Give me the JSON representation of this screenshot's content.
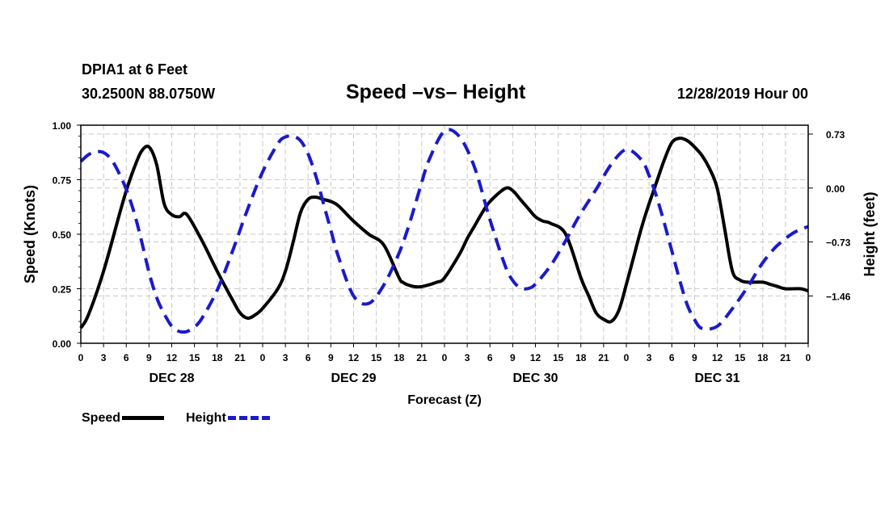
{
  "header": {
    "station": "DPIA1 at 6 Feet",
    "coords": "30.2500N 88.0750W",
    "title": "Speed –vs– Height",
    "date": "12/28/2019 Hour 00"
  },
  "legend": {
    "speed": "Speed",
    "height": "Height"
  },
  "chart_data": {
    "type": "line",
    "title": "Speed –vs– Height",
    "xlabel": "Forecast (Z)",
    "ylabel_left": "Speed (Knots)",
    "ylabel_right": "Height (feet)",
    "xlim": [
      0,
      96
    ],
    "ylim_left": [
      0,
      1
    ],
    "ylim_right": [
      -2.1,
      0.85
    ],
    "left_ticks": [
      {
        "v": 0,
        "label": "0.00"
      },
      {
        "v": 0.25,
        "label": "0.25"
      },
      {
        "v": 0.5,
        "label": "0.50"
      },
      {
        "v": 0.75,
        "label": "0.75"
      },
      {
        "v": 1,
        "label": "1.00"
      }
    ],
    "right_ticks": [
      {
        "v": 0.73,
        "label": "0.73"
      },
      {
        "v": 0,
        "label": "0.00"
      },
      {
        "v": -0.73,
        "label": "−0.73"
      },
      {
        "v": -1.46,
        "label": "−1.46"
      }
    ],
    "x_tick_labels": [
      "0",
      "3",
      "6",
      "9",
      "12",
      "15",
      "18",
      "21",
      "0",
      "3",
      "6",
      "9",
      "12",
      "15",
      "18",
      "21",
      "0",
      "3",
      "6",
      "9",
      "12",
      "15",
      "18",
      "21",
      "0",
      "3",
      "6",
      "9",
      "12",
      "15",
      "18",
      "21",
      "0"
    ],
    "day_labels": [
      {
        "x": 12,
        "label": "DEC 28"
      },
      {
        "x": 36,
        "label": "DEC 29"
      },
      {
        "x": 60,
        "label": "DEC 30"
      },
      {
        "x": 84,
        "label": "DEC 31"
      }
    ],
    "grid": true,
    "series": [
      {
        "name": "Speed",
        "axis": "left",
        "color": "#000000",
        "style": "solid",
        "x": [
          0,
          1,
          3,
          5,
          6,
          7,
          8,
          9,
          10,
          11,
          12,
          13,
          14,
          16,
          18,
          20,
          21,
          22,
          23,
          24,
          26,
          27,
          28,
          29,
          30,
          31,
          32,
          33,
          34,
          36,
          38,
          40,
          42,
          42.5,
          43,
          44,
          45,
          47,
          48,
          50,
          51,
          52,
          53,
          54,
          56,
          57,
          58,
          59,
          60,
          61,
          62,
          64,
          66,
          67,
          68,
          69,
          70,
          71,
          72,
          73,
          74,
          75,
          76,
          77,
          78,
          79,
          80,
          81,
          82,
          83,
          84,
          85,
          86,
          87,
          88,
          90,
          91,
          92,
          93,
          95,
          96
        ],
        "y": [
          0.07,
          0.13,
          0.33,
          0.58,
          0.7,
          0.8,
          0.88,
          0.9,
          0.82,
          0.64,
          0.59,
          0.58,
          0.59,
          0.47,
          0.33,
          0.2,
          0.14,
          0.115,
          0.13,
          0.16,
          0.25,
          0.33,
          0.46,
          0.6,
          0.66,
          0.67,
          0.66,
          0.65,
          0.63,
          0.56,
          0.5,
          0.45,
          0.3,
          0.28,
          0.27,
          0.26,
          0.26,
          0.28,
          0.3,
          0.41,
          0.48,
          0.54,
          0.6,
          0.65,
          0.71,
          0.7,
          0.66,
          0.62,
          0.58,
          0.56,
          0.55,
          0.5,
          0.3,
          0.22,
          0.14,
          0.11,
          0.1,
          0.15,
          0.27,
          0.4,
          0.53,
          0.64,
          0.74,
          0.84,
          0.92,
          0.94,
          0.93,
          0.9,
          0.86,
          0.8,
          0.71,
          0.52,
          0.33,
          0.29,
          0.28,
          0.28,
          0.27,
          0.26,
          0.25,
          0.25,
          0.24
        ]
      },
      {
        "name": "Height",
        "axis": "right",
        "color": "#1a1acc",
        "style": "dashed",
        "x": [
          0,
          1,
          2,
          3,
          4,
          5,
          6,
          7,
          8,
          9,
          10,
          11,
          12,
          13,
          14,
          15,
          16,
          18,
          20,
          22,
          24,
          26,
          27,
          28,
          29,
          30,
          31,
          32,
          33,
          34,
          36,
          38,
          40,
          42,
          43,
          44,
          45,
          46,
          48,
          50,
          52,
          54,
          56,
          57,
          58,
          59,
          60,
          62,
          64,
          65,
          66,
          68,
          70,
          72,
          74,
          75,
          76,
          77,
          78,
          79,
          80,
          81,
          82,
          84,
          86,
          88,
          89,
          90,
          91,
          92,
          94,
          96
        ],
        "y": [
          0.36,
          0.45,
          0.49,
          0.48,
          0.39,
          0.21,
          -0.02,
          -0.32,
          -0.71,
          -1.14,
          -1.48,
          -1.7,
          -1.87,
          -1.94,
          -1.94,
          -1.88,
          -1.76,
          -1.38,
          -0.86,
          -0.29,
          0.22,
          0.6,
          0.69,
          0.7,
          0.64,
          0.46,
          0.17,
          -0.2,
          -0.57,
          -0.93,
          -1.46,
          -1.56,
          -1.31,
          -0.88,
          -0.6,
          -0.27,
          0.08,
          0.39,
          0.77,
          0.69,
          0.27,
          -0.43,
          -1.05,
          -1.25,
          -1.35,
          -1.36,
          -1.3,
          -1.05,
          -0.71,
          -0.52,
          -0.34,
          -0.02,
          0.32,
          0.52,
          0.38,
          0.17,
          -0.12,
          -0.47,
          -0.85,
          -1.23,
          -1.57,
          -1.78,
          -1.9,
          -1.87,
          -1.63,
          -1.34,
          -1.17,
          -1.01,
          -0.88,
          -0.77,
          -0.61,
          -0.52
        ]
      }
    ]
  }
}
